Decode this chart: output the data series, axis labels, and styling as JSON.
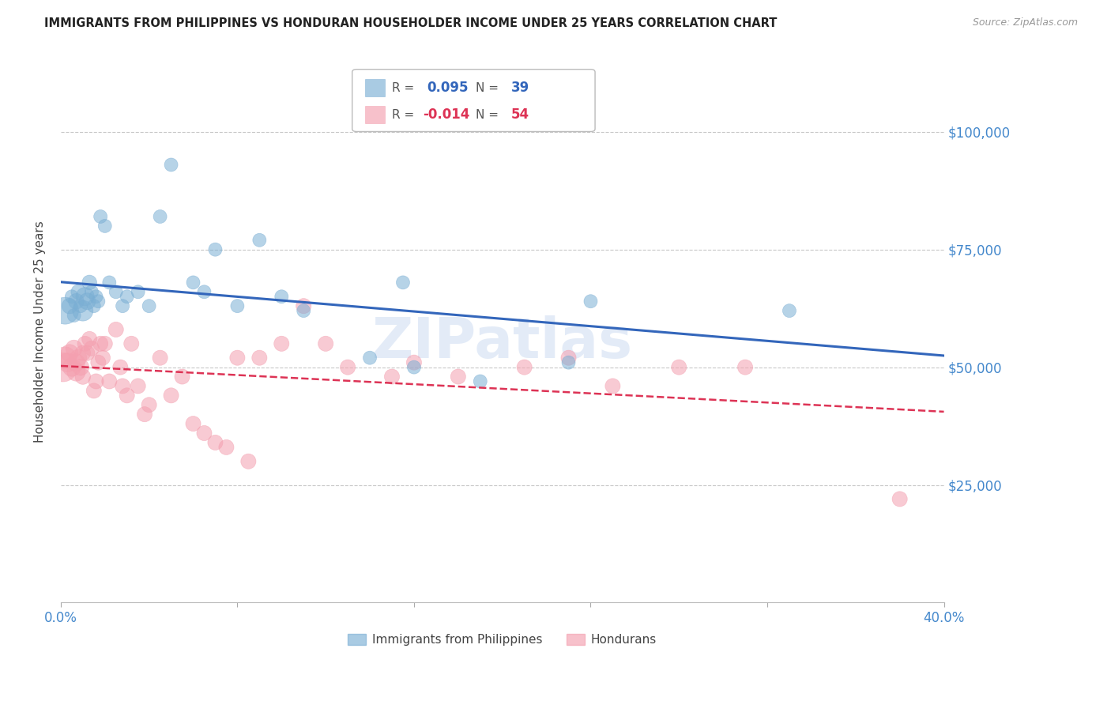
{
  "title": "IMMIGRANTS FROM PHILIPPINES VS HONDURAN HOUSEHOLDER INCOME UNDER 25 YEARS CORRELATION CHART",
  "source": "Source: ZipAtlas.com",
  "ylabel": "Householder Income Under 25 years",
  "xlim": [
    0.0,
    0.4
  ],
  "ylim": [
    0,
    115000
  ],
  "background_color": "#ffffff",
  "grid_color": "#c8c8c8",
  "blue_color": "#7bafd4",
  "pink_color": "#f4a0b0",
  "trend_blue": "#3366bb",
  "trend_pink": "#dd3355",
  "tick_label_color": "#4488cc",
  "legend_R_blue": "0.095",
  "legend_N_blue": "39",
  "legend_R_pink": "-0.014",
  "legend_N_pink": "54",
  "philippines_x": [
    0.002,
    0.004,
    0.005,
    0.006,
    0.007,
    0.008,
    0.009,
    0.01,
    0.011,
    0.012,
    0.013,
    0.014,
    0.015,
    0.016,
    0.017,
    0.018,
    0.02,
    0.022,
    0.025,
    0.028,
    0.03,
    0.035,
    0.04,
    0.045,
    0.05,
    0.06,
    0.065,
    0.07,
    0.08,
    0.09,
    0.1,
    0.11,
    0.14,
    0.155,
    0.16,
    0.19,
    0.23,
    0.24,
    0.33
  ],
  "philippines_y": [
    62000,
    63000,
    65000,
    61000,
    64000,
    66000,
    63000,
    62000,
    65000,
    64000,
    68000,
    66000,
    63000,
    65000,
    64000,
    82000,
    80000,
    68000,
    66000,
    63000,
    65000,
    66000,
    63000,
    82000,
    93000,
    68000,
    66000,
    75000,
    63000,
    77000,
    65000,
    62000,
    52000,
    68000,
    50000,
    47000,
    51000,
    64000,
    62000
  ],
  "philippines_sizes": [
    600,
    200,
    150,
    150,
    200,
    180,
    150,
    350,
    280,
    230,
    180,
    150,
    150,
    150,
    150,
    150,
    150,
    150,
    150,
    150,
    150,
    150,
    150,
    150,
    150,
    150,
    150,
    150,
    150,
    150,
    150,
    150,
    150,
    150,
    150,
    150,
    150,
    150,
    150
  ],
  "honduran_x": [
    0.001,
    0.002,
    0.003,
    0.004,
    0.005,
    0.006,
    0.007,
    0.007,
    0.008,
    0.009,
    0.01,
    0.01,
    0.011,
    0.012,
    0.013,
    0.014,
    0.015,
    0.016,
    0.017,
    0.018,
    0.019,
    0.02,
    0.022,
    0.025,
    0.027,
    0.028,
    0.03,
    0.032,
    0.035,
    0.038,
    0.04,
    0.045,
    0.05,
    0.055,
    0.06,
    0.065,
    0.07,
    0.075,
    0.08,
    0.085,
    0.09,
    0.1,
    0.11,
    0.12,
    0.13,
    0.15,
    0.16,
    0.18,
    0.21,
    0.23,
    0.25,
    0.28,
    0.31,
    0.38
  ],
  "honduran_y": [
    50000,
    52000,
    51000,
    53000,
    50000,
    54000,
    49000,
    51000,
    52000,
    50000,
    53000,
    48000,
    55000,
    53000,
    56000,
    54000,
    45000,
    47000,
    51000,
    55000,
    52000,
    55000,
    47000,
    58000,
    50000,
    46000,
    44000,
    55000,
    46000,
    40000,
    42000,
    52000,
    44000,
    48000,
    38000,
    36000,
    34000,
    33000,
    52000,
    30000,
    52000,
    55000,
    63000,
    55000,
    50000,
    48000,
    51000,
    48000,
    50000,
    52000,
    46000,
    50000,
    50000,
    22000
  ],
  "honduran_sizes": [
    700,
    400,
    300,
    250,
    280,
    230,
    280,
    250,
    230,
    230,
    200,
    200,
    190,
    190,
    190,
    190,
    190,
    190,
    190,
    190,
    190,
    190,
    190,
    190,
    190,
    190,
    190,
    190,
    190,
    190,
    190,
    190,
    190,
    190,
    190,
    190,
    190,
    190,
    190,
    190,
    190,
    190,
    190,
    190,
    190,
    190,
    190,
    190,
    190,
    190,
    190,
    190,
    190,
    190
  ]
}
